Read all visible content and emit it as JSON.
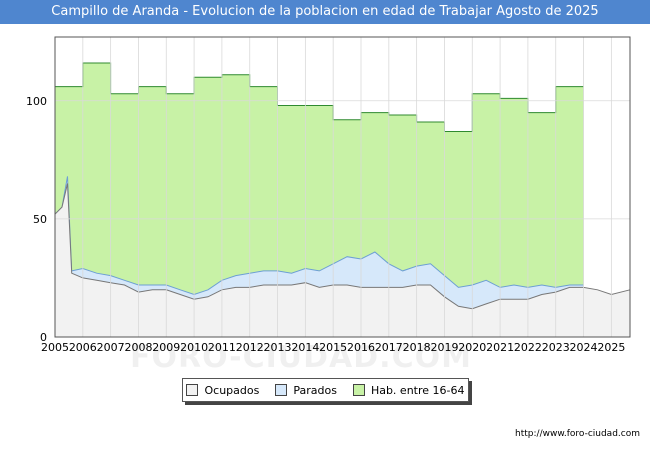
{
  "header": {
    "title": "Campillo de Aranda - Evolucion de la poblacion en edad de Trabajar Agosto de 2025"
  },
  "watermark": "FORO-CIUDAD.COM",
  "footer": {
    "source": "http://www.foro-ciudad.com"
  },
  "legend": [
    {
      "label": "Ocupados",
      "color": "#f2f2f2"
    },
    {
      "label": "Parados",
      "color": "#d6e8fa"
    },
    {
      "label": "Hab. entre 16-64",
      "color": "#c8f2a6"
    }
  ],
  "chart_data": {
    "type": "area",
    "title": "Campillo de Aranda - Evolucion de la poblacion en edad de Trabajar Agosto de 2025",
    "xlim": [
      2005,
      2025.67
    ],
    "ylim": [
      0,
      127
    ],
    "x_ticks": [
      "2005",
      "2006",
      "2007",
      "2008",
      "2009",
      "2010",
      "2011",
      "2012",
      "2013",
      "2014",
      "2015",
      "2016",
      "2017",
      "2018",
      "2019",
      "2020",
      "2021",
      "2022",
      "2023",
      "2024",
      "2025"
    ],
    "y_ticks": [
      0,
      50,
      100
    ],
    "grid": true,
    "legend_position": "bottom",
    "series": [
      {
        "name": "Hab. entre 16-64",
        "color": "#c8f2a6",
        "line_color": "#2f8a2f",
        "points": [
          [
            2005,
            106
          ],
          [
            2006,
            106
          ],
          [
            2006,
            116
          ],
          [
            2007,
            116
          ],
          [
            2007,
            103
          ],
          [
            2008,
            103
          ],
          [
            2008,
            106
          ],
          [
            2009,
            106
          ],
          [
            2009,
            103
          ],
          [
            2010,
            103
          ],
          [
            2010,
            110
          ],
          [
            2011,
            110
          ],
          [
            2011,
            111
          ],
          [
            2012,
            111
          ],
          [
            2012,
            106
          ],
          [
            2013,
            106
          ],
          [
            2013,
            98
          ],
          [
            2014,
            98
          ],
          [
            2015,
            98
          ],
          [
            2015,
            92
          ],
          [
            2016,
            92
          ],
          [
            2016,
            95
          ],
          [
            2017,
            95
          ],
          [
            2017,
            94
          ],
          [
            2018,
            94
          ],
          [
            2018,
            91
          ],
          [
            2019,
            91
          ],
          [
            2019,
            87
          ],
          [
            2020,
            87
          ],
          [
            2020,
            103
          ],
          [
            2021,
            103
          ],
          [
            2021,
            101
          ],
          [
            2022,
            101
          ],
          [
            2022,
            95
          ],
          [
            2023,
            95
          ],
          [
            2023,
            106
          ],
          [
            2024,
            106
          ]
        ]
      },
      {
        "name": "Parados",
        "color": "#d6e8fa",
        "line_color": "#6d9fd4",
        "points": [
          [
            2005,
            52
          ],
          [
            2005.25,
            55
          ],
          [
            2005.45,
            68
          ],
          [
            2005.6,
            28
          ],
          [
            2006,
            29
          ],
          [
            2006.5,
            27
          ],
          [
            2007,
            26
          ],
          [
            2007.5,
            24
          ],
          [
            2008,
            22
          ],
          [
            2008.5,
            22
          ],
          [
            2009,
            22
          ],
          [
            2009.5,
            20
          ],
          [
            2010,
            18
          ],
          [
            2010.5,
            20
          ],
          [
            2011,
            24
          ],
          [
            2011.5,
            26
          ],
          [
            2012,
            27
          ],
          [
            2012.5,
            28
          ],
          [
            2013,
            28
          ],
          [
            2013.5,
            27
          ],
          [
            2014,
            29
          ],
          [
            2014.5,
            28
          ],
          [
            2015,
            31
          ],
          [
            2015.5,
            34
          ],
          [
            2016,
            33
          ],
          [
            2016.5,
            36
          ],
          [
            2017,
            31
          ],
          [
            2017.5,
            28
          ],
          [
            2018,
            30
          ],
          [
            2018.5,
            31
          ],
          [
            2019,
            26
          ],
          [
            2019.5,
            21
          ],
          [
            2020,
            22
          ],
          [
            2020.5,
            24
          ],
          [
            2021,
            21
          ],
          [
            2021.5,
            22
          ],
          [
            2022,
            21
          ],
          [
            2022.5,
            22
          ],
          [
            2023,
            21
          ],
          [
            2023.5,
            22
          ],
          [
            2024,
            22
          ]
        ]
      },
      {
        "name": "Ocupados",
        "color": "#f2f2f2",
        "line_color": "#777777",
        "points": [
          [
            2005,
            52
          ],
          [
            2005.25,
            55
          ],
          [
            2005.45,
            65
          ],
          [
            2005.6,
            27
          ],
          [
            2006,
            25
          ],
          [
            2006.5,
            24
          ],
          [
            2007,
            23
          ],
          [
            2007.5,
            22
          ],
          [
            2008,
            19
          ],
          [
            2008.5,
            20
          ],
          [
            2009,
            20
          ],
          [
            2009.5,
            18
          ],
          [
            2010,
            16
          ],
          [
            2010.5,
            17
          ],
          [
            2011,
            20
          ],
          [
            2011.5,
            21
          ],
          [
            2012,
            21
          ],
          [
            2012.5,
            22
          ],
          [
            2013,
            22
          ],
          [
            2013.5,
            22
          ],
          [
            2014,
            23
          ],
          [
            2014.5,
            21
          ],
          [
            2015,
            22
          ],
          [
            2015.5,
            22
          ],
          [
            2016,
            21
          ],
          [
            2016.5,
            21
          ],
          [
            2017,
            21
          ],
          [
            2017.5,
            21
          ],
          [
            2018,
            22
          ],
          [
            2018.5,
            22
          ],
          [
            2019,
            17
          ],
          [
            2019.5,
            13
          ],
          [
            2020,
            12
          ],
          [
            2020.5,
            14
          ],
          [
            2021,
            16
          ],
          [
            2021.5,
            16
          ],
          [
            2022,
            16
          ],
          [
            2022.5,
            18
          ],
          [
            2023,
            19
          ],
          [
            2023.5,
            21
          ],
          [
            2024,
            21
          ],
          [
            2024.5,
            20
          ],
          [
            2025,
            18
          ],
          [
            2025.67,
            20
          ]
        ]
      }
    ]
  }
}
